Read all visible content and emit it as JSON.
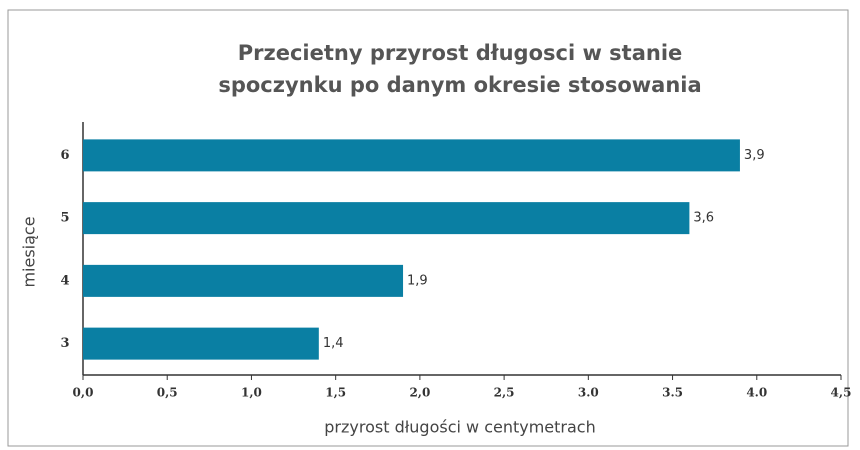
{
  "chart_data": {
    "type": "barh",
    "title": [
      "Przecietny przyrost długosci w stanie",
      "spoczynku po danym okresie stosowania"
    ],
    "ylabel": "miesiące",
    "xlabel": "przyrost długości w centymetrach",
    "categories": [
      "3",
      "4",
      "5",
      "6"
    ],
    "values": [
      1.4,
      1.9,
      3.6,
      3.9
    ],
    "value_labels": [
      "1,4",
      "1,9",
      "3,6",
      "3,9"
    ],
    "color": "#0a7fa3",
    "xlim": [
      0,
      4.5
    ],
    "xticks": [
      {
        "value": 0,
        "label": "0,0"
      },
      {
        "value": 0.5,
        "label": "0,5"
      },
      {
        "value": 1,
        "label": "1,0"
      },
      {
        "value": 1.5,
        "label": "1,5"
      },
      {
        "value": 2,
        "label": "2,0"
      },
      {
        "value": 2.5,
        "label": "2,5"
      },
      {
        "value": 3,
        "label": "3.0"
      },
      {
        "value": 3.5,
        "label": "3.5"
      },
      {
        "value": 4,
        "label": "4.0"
      },
      {
        "value": 4.5,
        "label": "4,5"
      }
    ]
  }
}
